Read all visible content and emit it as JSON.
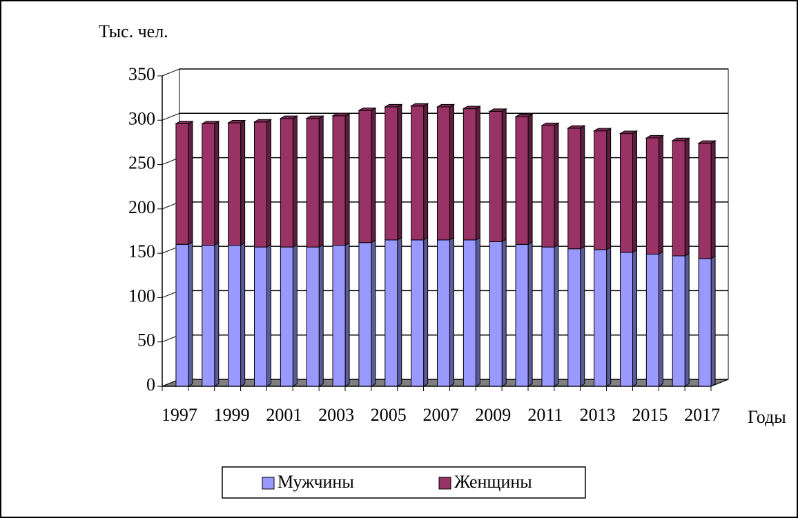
{
  "chart_data": {
    "type": "bar",
    "stacked": true,
    "y_label": "Тыс. чел.",
    "x_label": "Годы",
    "categories": [
      "1997",
      null,
      "1999",
      null,
      "2001",
      null,
      "2003",
      null,
      "2005",
      null,
      "2007",
      null,
      "2009",
      null,
      "2011",
      null,
      "2013",
      null,
      "2015",
      null,
      "2017"
    ],
    "series": [
      {
        "name": "Мужчины",
        "color": "#9999ff",
        "values": [
          160,
          159,
          159,
          157,
          157,
          157,
          159,
          162,
          165,
          165,
          165,
          165,
          163,
          160,
          157,
          155,
          154,
          151,
          149,
          147,
          144
        ]
      },
      {
        "name": "Женщины",
        "color": "#993366",
        "values": [
          136,
          137,
          138,
          141,
          145,
          145,
          146,
          149,
          150,
          151,
          150,
          148,
          147,
          144,
          137,
          136,
          134,
          134,
          131,
          130,
          130
        ]
      }
    ],
    "ylim": [
      0,
      350
    ],
    "yticks": [
      0,
      50,
      100,
      150,
      200,
      250,
      300,
      350
    ],
    "grid": true,
    "legend": "bottom"
  }
}
